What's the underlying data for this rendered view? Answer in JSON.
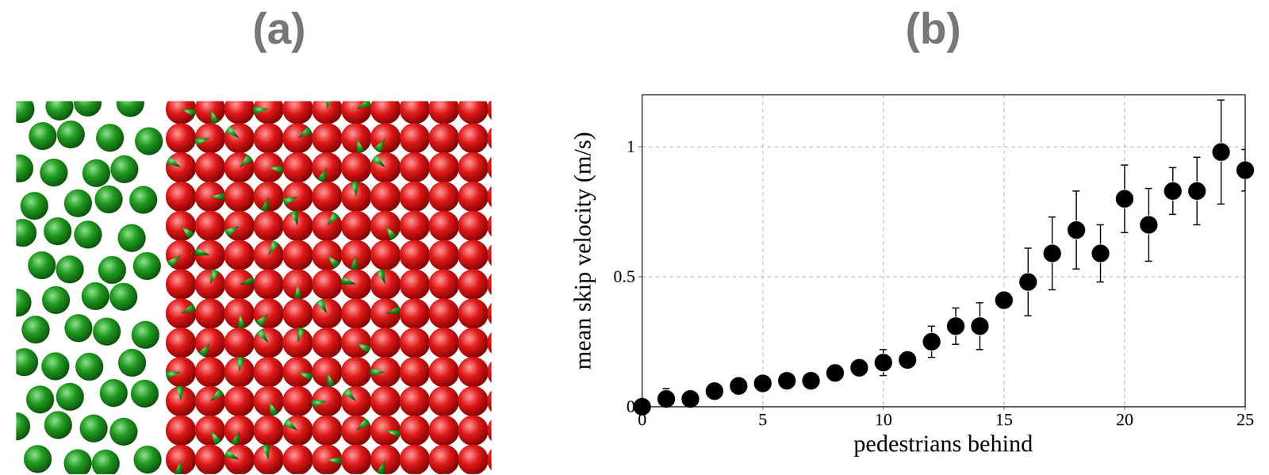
{
  "image_panel": {
    "label": "(a)"
  },
  "chart_data": {
    "type": "scatter",
    "title": "(b)",
    "x_label": "pedestrians behind",
    "y_label": "mean skip velocity (m/s)",
    "x": [
      0,
      1,
      2,
      3,
      4,
      5,
      6,
      7,
      8,
      9,
      10,
      11,
      12,
      13,
      14,
      15,
      16,
      17,
      18,
      19,
      20,
      21,
      22,
      23,
      24,
      25
    ],
    "values": [
      0.0,
      0.03,
      0.03,
      0.06,
      0.08,
      0.09,
      0.1,
      0.1,
      0.13,
      0.15,
      0.17,
      0.18,
      0.25,
      0.31,
      0.31,
      0.41,
      0.48,
      0.59,
      0.68,
      0.59,
      0.8,
      0.7,
      0.83,
      0.83,
      0.98,
      0.91
    ],
    "errors": [
      0.01,
      0.04,
      0.02,
      0.02,
      0.02,
      0.02,
      0.02,
      0.02,
      0.02,
      0.02,
      0.05,
      0.03,
      0.06,
      0.07,
      0.09,
      0.03,
      0.13,
      0.14,
      0.15,
      0.11,
      0.13,
      0.14,
      0.09,
      0.13,
      0.2,
      0.08
    ],
    "color": "#000000",
    "marker": "circle",
    "xlim": [
      0,
      25
    ],
    "xticks": [
      0,
      5,
      10,
      15,
      20,
      25
    ],
    "ylim": [
      0,
      1.2
    ],
    "yticks": [
      0,
      0.5,
      1
    ],
    "grid": true
  }
}
